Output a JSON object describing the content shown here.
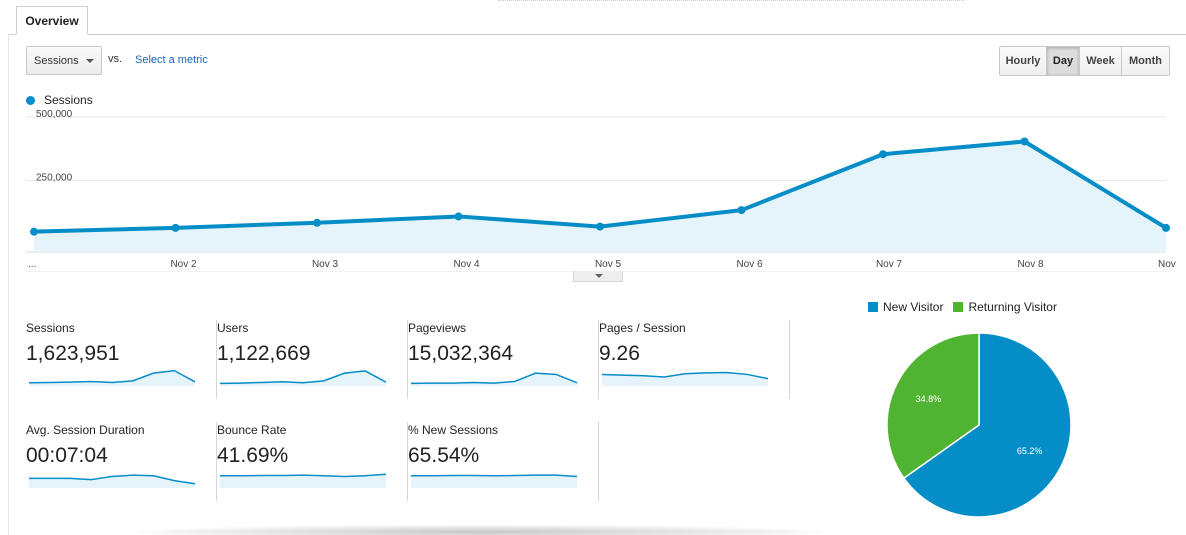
{
  "tabs": {
    "overview": "Overview"
  },
  "controls": {
    "metric_select": "Sessions",
    "vs_label": "vs.",
    "select_metric_link": "Select a metric",
    "granularity": [
      "Hourly",
      "Day",
      "Week",
      "Month"
    ],
    "granularity_active": "Day"
  },
  "chart_data": [
    {
      "type": "area",
      "series": [
        {
          "name": "Sessions",
          "values": [
            80000,
            95000,
            115000,
            140000,
            100000,
            165000,
            385000,
            435000,
            95000
          ]
        }
      ],
      "categories": [
        "...",
        "Nov 2",
        "Nov 3",
        "Nov 4",
        "Nov 5",
        "Nov 6",
        "Nov 7",
        "Nov 8",
        "Nov"
      ],
      "y_ticks": [
        "500,000",
        "250,000"
      ],
      "ylim": [
        0,
        500000
      ],
      "color": "#058dc7",
      "fill": "#e5f3fa",
      "grid": true,
      "legend": "top-left"
    },
    {
      "type": "pie",
      "series": [
        {
          "name": "New Visitor",
          "value": 65.2,
          "label": "65.2%",
          "color": "#058dc7"
        },
        {
          "name": "Returning Visitor",
          "value": 34.8,
          "label": "34.8%",
          "color": "#50b432"
        }
      ],
      "legend": "top"
    }
  ],
  "metrics": [
    {
      "label": "Sessions",
      "value": "1,623,951",
      "spark": [
        32,
        33,
        34,
        36,
        33,
        38,
        62,
        70,
        35
      ]
    },
    {
      "label": "Users",
      "value": "1,122,669",
      "spark": [
        30,
        31,
        33,
        35,
        32,
        38,
        62,
        69,
        34
      ]
    },
    {
      "label": "Pageviews",
      "value": "15,032,364",
      "spark": [
        30,
        31,
        31,
        33,
        31,
        36,
        62,
        58,
        32
      ]
    },
    {
      "label": "Pages / Session",
      "value": "9.26",
      "spark": [
        58,
        56,
        54,
        50,
        60,
        63,
        64,
        58,
        45
      ]
    },
    {
      "label": "Avg. Session Duration",
      "value": "00:07:04",
      "spark": [
        52,
        52,
        52,
        48,
        58,
        62,
        60,
        45,
        35
      ]
    },
    {
      "label": "Bounce Rate",
      "value": "41.69%",
      "spark": [
        60,
        60,
        61,
        61,
        62,
        60,
        58,
        60,
        65
      ]
    },
    {
      "label": "% New Sessions",
      "value": "65.54%",
      "spark": [
        60,
        60,
        61,
        61,
        60,
        61,
        62,
        62,
        58
      ]
    }
  ]
}
